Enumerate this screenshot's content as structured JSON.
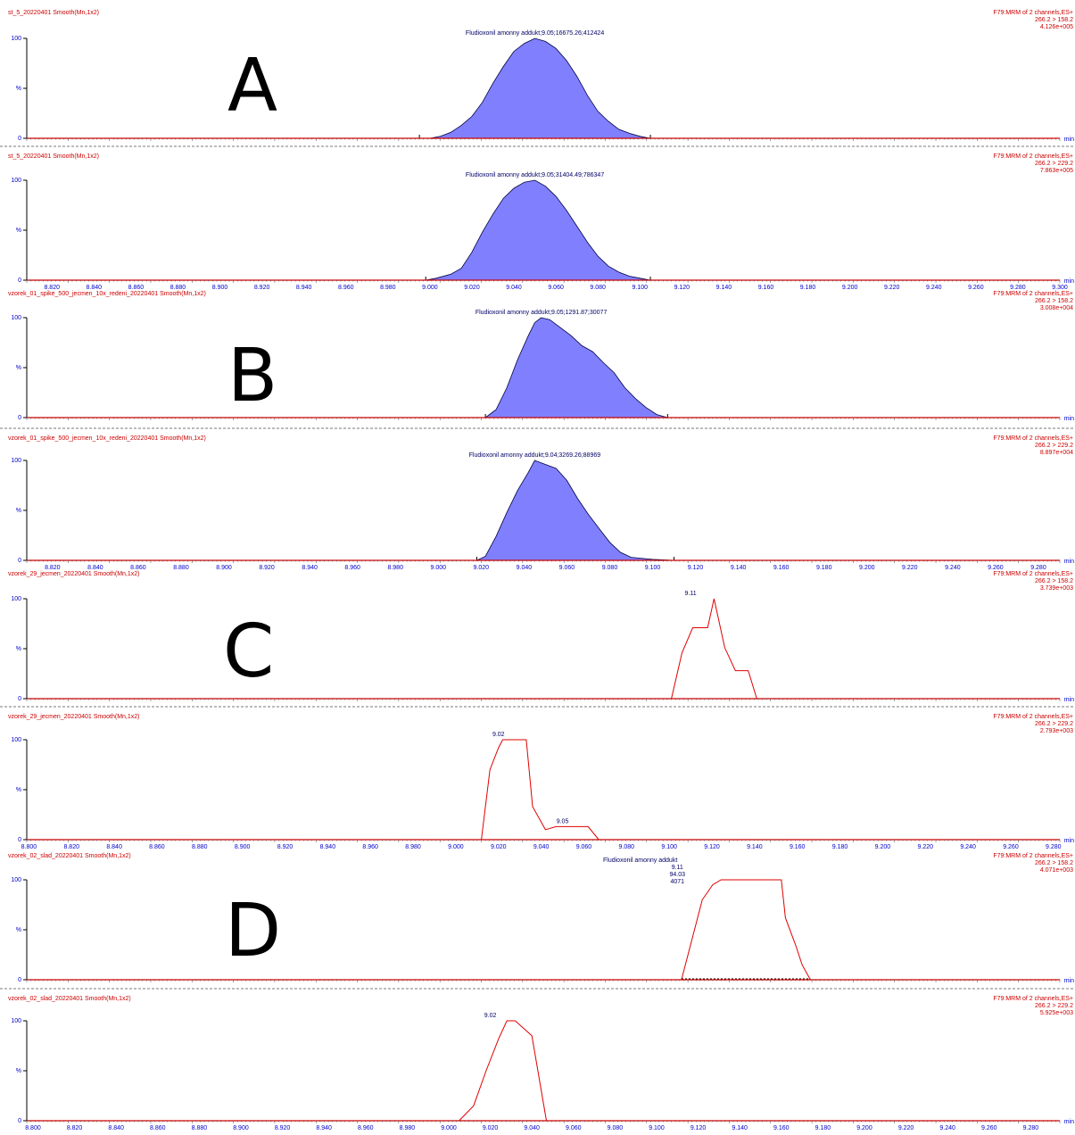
{
  "chart_data": [
    {
      "type": "area",
      "group": "A",
      "sample": "st_5_20220401 Smooth(Mn,1x2)",
      "channel": "F79:MRM of 2 channels,ES+",
      "transition": "266.2 > 158.2",
      "intensity": "4.126e+005",
      "yticks": [
        "100",
        "%",
        "0"
      ],
      "xunit": "min",
      "show_xticks": false,
      "peak_label": [
        "Fludioxonil amonny addukt;9.05;16675.26;412424"
      ],
      "fill": "#8080ff",
      "x": [
        8.995,
        9.0,
        9.005,
        9.01,
        9.015,
        9.02,
        9.025,
        9.03,
        9.035,
        9.04,
        9.045,
        9.05,
        9.055,
        9.06,
        9.065,
        9.07,
        9.075,
        9.08,
        9.085,
        9.09,
        9.095,
        9.1,
        9.105
      ],
      "y": [
        0,
        0,
        2,
        6,
        13,
        22,
        36,
        55,
        72,
        87,
        95,
        100,
        97,
        90,
        78,
        62,
        43,
        27,
        17,
        9,
        5,
        2,
        0
      ]
    },
    {
      "type": "area",
      "group": "A",
      "sample": "st_5_20220401 Smooth(Mn,1x2)",
      "channel": "F79:MRM of 2 channels,ES+",
      "transition": "266.2 > 229.2",
      "intensity": "7.863e+005",
      "yticks": [
        "100",
        "%",
        "0"
      ],
      "xunit": "min",
      "show_xticks": true,
      "xticks": [
        "8.820",
        "8.840",
        "8.860",
        "8.880",
        "8.900",
        "8.920",
        "8.940",
        "8.960",
        "8.980",
        "9.000",
        "9.020",
        "9.040",
        "9.060",
        "9.080",
        "9.100",
        "9.120",
        "9.140",
        "9.160",
        "9.180",
        "9.200",
        "9.220",
        "9.240",
        "9.260",
        "9.280",
        "9.300"
      ],
      "peak_label": [
        "Fludioxonil amonny addukt;9.05;31404.49;786347"
      ],
      "fill": "#8080ff",
      "x": [
        8.998,
        9.003,
        9.01,
        9.015,
        9.02,
        9.025,
        9.03,
        9.035,
        9.04,
        9.045,
        9.05,
        9.055,
        9.06,
        9.065,
        9.07,
        9.075,
        9.08,
        9.085,
        9.09,
        9.095,
        9.1,
        9.105
      ],
      "y": [
        0,
        2,
        6,
        12,
        28,
        48,
        66,
        82,
        92,
        98,
        100,
        94,
        84,
        70,
        54,
        38,
        24,
        14,
        8,
        4,
        2,
        0
      ]
    },
    {
      "type": "area",
      "group": "B",
      "sample": "vzorek_01_spike_500_jecmen_10x_redeni_20220401 Smooth(Mn,1x2)",
      "channel": "F79:MRM of 2 channels,ES+",
      "transition": "266.2 > 158.2",
      "intensity": "3.008e+004",
      "yticks": [
        "100",
        "%",
        "0"
      ],
      "xunit": "min",
      "show_xticks": false,
      "peak_label": [
        "Fludioxonil amonny addukt;9.05;1291.87;30077"
      ],
      "fill": "#8080ff",
      "x": [
        9.022,
        9.027,
        9.032,
        9.037,
        9.042,
        9.045,
        9.048,
        9.052,
        9.057,
        9.062,
        9.067,
        9.072,
        9.077,
        9.082,
        9.087,
        9.092,
        9.097,
        9.102,
        9.107
      ],
      "y": [
        0,
        8,
        30,
        58,
        82,
        95,
        100,
        98,
        90,
        82,
        72,
        66,
        55,
        45,
        30,
        19,
        10,
        3,
        0
      ]
    },
    {
      "type": "area",
      "group": "B",
      "sample": "vzorek_01_spike_500_jecmen_10x_redeni_20220401 Smooth(Mn,1x2)",
      "channel": "F79:MRM of 2 channels,ES+",
      "transition": "266.2 > 229.2",
      "intensity": "8.897e+004",
      "yticks": [
        "100",
        "%",
        "0"
      ],
      "xunit": "min",
      "show_xticks": true,
      "xticks": [
        "8.820",
        "8.840",
        "8.860",
        "8.880",
        "8.900",
        "8.920",
        "8.940",
        "8.960",
        "8.980",
        "9.000",
        "9.020",
        "9.040",
        "9.060",
        "9.080",
        "9.100",
        "9.120",
        "9.140",
        "9.160",
        "9.180",
        "9.200",
        "9.220",
        "9.240",
        "9.260",
        "9.280"
      ],
      "peak_label": [
        "Fludioxonil amonny addukt;9.04;3269.26;88969"
      ],
      "fill": "#8080ff",
      "x": [
        9.018,
        9.022,
        9.027,
        9.032,
        9.037,
        9.042,
        9.045,
        9.05,
        9.055,
        9.06,
        9.065,
        9.07,
        9.075,
        9.08,
        9.085,
        9.09,
        9.1,
        9.11
      ],
      "y": [
        0,
        4,
        24,
        48,
        70,
        88,
        100,
        96,
        92,
        80,
        62,
        46,
        32,
        18,
        8,
        3,
        1,
        0
      ]
    },
    {
      "type": "line",
      "group": "C",
      "sample": "vzorek_29_jecmen_20220401 Smooth(Mn,1x2)",
      "channel": "F79:MRM of 2 channels,ES+",
      "transition": "266.2 > 158.2",
      "intensity": "3.739e+003",
      "yticks": [
        "100",
        "%",
        "0"
      ],
      "xunit": "min",
      "show_xticks": false,
      "peak_label": [
        "9.11"
      ],
      "peak_label_x": 9.11,
      "stroke": "#e00000",
      "x": [
        9.101,
        9.106,
        9.111,
        9.118,
        9.121,
        9.126,
        9.131,
        9.137,
        9.141
      ],
      "y": [
        0,
        46,
        71,
        71,
        100,
        51,
        28,
        28,
        0
      ]
    },
    {
      "type": "line",
      "group": "C",
      "sample": "vzorek_29_jecmen_20220401 Smooth(Mn,1x2)",
      "channel": "F79:MRM of 2 channels,ES+",
      "transition": "266.2 > 229.2",
      "intensity": "2.793e+003",
      "yticks": [
        "100",
        "%",
        "0"
      ],
      "xunit": "min",
      "show_xticks": true,
      "xticks": [
        "8.800",
        "8.820",
        "8.840",
        "8.860",
        "8.880",
        "8.900",
        "8.920",
        "8.940",
        "8.960",
        "8.980",
        "9.000",
        "9.020",
        "9.040",
        "9.060",
        "9.080",
        "9.100",
        "9.120",
        "9.140",
        "9.160",
        "9.180",
        "9.200",
        "9.220",
        "9.240",
        "9.260",
        "9.280"
      ],
      "peak_label": [
        "9.02"
      ],
      "peak_label_x": 9.02,
      "secondary_label": "9.05",
      "secondary_label_x": 9.05,
      "secondary_label_y": 14,
      "stroke": "#e00000",
      "x": [
        9.012,
        9.016,
        9.02,
        9.022,
        9.027,
        9.033,
        9.036,
        9.042,
        9.047,
        9.052,
        9.062,
        9.067
      ],
      "y": [
        0,
        70,
        92,
        100,
        100,
        100,
        33,
        10,
        13,
        13,
        13,
        0
      ]
    },
    {
      "type": "line",
      "group": "D",
      "sample": "vzorek_02_slad_20220401 Smooth(Mn,1x2)",
      "channel": "F79:MRM of 2 channels,ES+",
      "transition": "266.2 > 158.2",
      "intensity": "4.071e+003",
      "yticks": [
        "100",
        "%",
        "0"
      ],
      "xunit": "min",
      "show_xticks": false,
      "peak_label": [
        "Fludioxonil amonny addukt",
        "9.11",
        "94.03",
        "4071"
      ],
      "peak_label_x": 9.11,
      "stroke": "#e00000",
      "x": [
        9.112,
        9.118,
        9.122,
        9.127,
        9.131,
        9.137,
        9.142,
        9.143,
        9.153,
        9.16,
        9.162,
        9.167,
        9.17,
        9.174
      ],
      "y": [
        0,
        48,
        80,
        95,
        100,
        100,
        100,
        100,
        100,
        100,
        62,
        34,
        15,
        0
      ]
    },
    {
      "type": "line",
      "group": "D",
      "sample": "vzorek_02_slad_20220401 Smooth(Mn,1x2)",
      "channel": "F79:MRM of 2 channels,ES+",
      "transition": "266.2 > 229.2",
      "intensity": "5.925e+003",
      "yticks": [
        "100",
        "%",
        "0"
      ],
      "xunit": "min",
      "show_xticks": true,
      "xticks": [
        "8.800",
        "8.820",
        "8.840",
        "8.860",
        "8.880",
        "8.900",
        "8.920",
        "8.940",
        "8.960",
        "8.980",
        "9.000",
        "9.020",
        "9.040",
        "9.060",
        "9.080",
        "9.100",
        "9.120",
        "9.140",
        "9.160",
        "9.180",
        "9.200",
        "9.220",
        "9.240",
        "9.260",
        "9.280"
      ],
      "peak_label": [
        "9.02"
      ],
      "peak_label_x": 9.02,
      "stroke": "#e00000",
      "x": [
        9.005,
        9.012,
        9.018,
        9.024,
        9.028,
        9.032,
        9.04,
        9.047
      ],
      "y": [
        0,
        15,
        50,
        82,
        100,
        100,
        85,
        0
      ]
    }
  ],
  "group_letters": [
    "A",
    "B",
    "C",
    "D"
  ]
}
